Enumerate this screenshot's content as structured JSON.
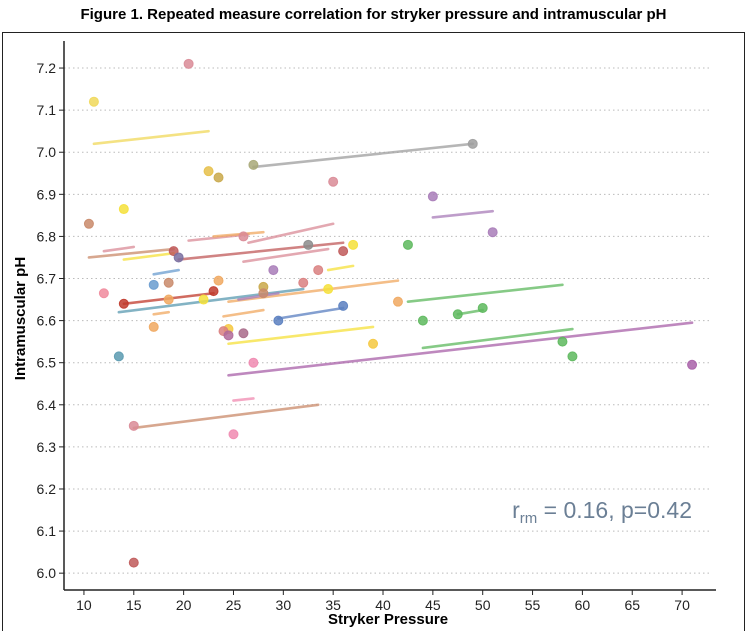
{
  "figure_title": "Figure 1. Repeated measure correlation for stryker pressure and intramuscular pH",
  "chart_data": {
    "type": "scatter",
    "title": "Figure 1. Repeated measure correlation for stryker pressure and intramuscular pH",
    "xlabel": "Stryker Pressure",
    "ylabel": "Intramuscular pH",
    "xlim": [
      8,
      73
    ],
    "ylim": [
      5.96,
      7.25
    ],
    "xticks": [
      10,
      15,
      20,
      25,
      30,
      35,
      40,
      45,
      50,
      55,
      60,
      65,
      70
    ],
    "yticks": [
      6.0,
      6.1,
      6.2,
      6.3,
      6.4,
      6.5,
      6.6,
      6.7,
      6.8,
      6.9,
      7.0,
      7.1,
      7.2
    ],
    "ytick_labels": [
      "6.0",
      "6.1",
      "6.2",
      "6.3",
      "6.4",
      "6.5",
      "6.6",
      "6.7",
      "6.8",
      "6.9",
      "7.0",
      "7.1",
      "7.2"
    ],
    "grid": "horizontal dotted",
    "annotation": {
      "r_prefix": "r",
      "r_sub": "rm",
      "text": " = 0.16, p=0.42"
    },
    "points": [
      {
        "x": 20.5,
        "y": 7.21,
        "color": "#d98b97"
      },
      {
        "x": 11,
        "y": 7.12,
        "color": "#f0d85a"
      },
      {
        "x": 49,
        "y": 7.02,
        "color": "#9e9e9e"
      },
      {
        "x": 27,
        "y": 6.97,
        "color": "#a8a878"
      },
      {
        "x": 22.5,
        "y": 6.955,
        "color": "#e6c04a"
      },
      {
        "x": 23.5,
        "y": 6.94,
        "color": "#c9a84a"
      },
      {
        "x": 35,
        "y": 6.93,
        "color": "#d98b97"
      },
      {
        "x": 45,
        "y": 6.895,
        "color": "#a87cb8"
      },
      {
        "x": 14,
        "y": 6.865,
        "color": "#f5e03a"
      },
      {
        "x": 10.5,
        "y": 6.83,
        "color": "#c98a6a"
      },
      {
        "x": 51,
        "y": 6.81,
        "color": "#a87cb8"
      },
      {
        "x": 26,
        "y": 6.8,
        "color": "#d98b97"
      },
      {
        "x": 42.5,
        "y": 6.78,
        "color": "#5db85d"
      },
      {
        "x": 37,
        "y": 6.78,
        "color": "#f5e03a"
      },
      {
        "x": 32.5,
        "y": 6.78,
        "color": "#8c8c8c"
      },
      {
        "x": 36,
        "y": 6.765,
        "color": "#c05a5a"
      },
      {
        "x": 19,
        "y": 6.765,
        "color": "#c05a5a"
      },
      {
        "x": 19.5,
        "y": 6.75,
        "color": "#7a6fa0"
      },
      {
        "x": 29,
        "y": 6.72,
        "color": "#a87cb8"
      },
      {
        "x": 33.5,
        "y": 6.72,
        "color": "#d98080"
      },
      {
        "x": 23.5,
        "y": 6.695,
        "color": "#f0a860"
      },
      {
        "x": 18.5,
        "y": 6.69,
        "color": "#c98a6a"
      },
      {
        "x": 32,
        "y": 6.69,
        "color": "#d98080"
      },
      {
        "x": 17,
        "y": 6.685,
        "color": "#6a9ccf"
      },
      {
        "x": 28,
        "y": 6.68,
        "color": "#c9a84a"
      },
      {
        "x": 34.5,
        "y": 6.675,
        "color": "#f5e03a"
      },
      {
        "x": 23,
        "y": 6.67,
        "color": "#c0392b"
      },
      {
        "x": 12,
        "y": 6.665,
        "color": "#f08a9c"
      },
      {
        "x": 28,
        "y": 6.665,
        "color": "#c98a6a"
      },
      {
        "x": 22,
        "y": 6.65,
        "color": "#f5e03a"
      },
      {
        "x": 18.5,
        "y": 6.65,
        "color": "#f0a860"
      },
      {
        "x": 41.5,
        "y": 6.645,
        "color": "#f0a860"
      },
      {
        "x": 14,
        "y": 6.64,
        "color": "#c0392b"
      },
      {
        "x": 36,
        "y": 6.635,
        "color": "#5a7fc0"
      },
      {
        "x": 50,
        "y": 6.63,
        "color": "#5db85d"
      },
      {
        "x": 47.5,
        "y": 6.615,
        "color": "#5db85d"
      },
      {
        "x": 29.5,
        "y": 6.6,
        "color": "#5a7fc0"
      },
      {
        "x": 44,
        "y": 6.6,
        "color": "#5db85d"
      },
      {
        "x": 17,
        "y": 6.585,
        "color": "#f0a860"
      },
      {
        "x": 24.5,
        "y": 6.58,
        "color": "#f5c840"
      },
      {
        "x": 24,
        "y": 6.575,
        "color": "#d98080"
      },
      {
        "x": 26,
        "y": 6.57,
        "color": "#a86a8a"
      },
      {
        "x": 24.5,
        "y": 6.565,
        "color": "#b06a9a"
      },
      {
        "x": 39,
        "y": 6.545,
        "color": "#f5c840"
      },
      {
        "x": 58,
        "y": 6.55,
        "color": "#5db85d"
      },
      {
        "x": 13.5,
        "y": 6.515,
        "color": "#5a9ab0"
      },
      {
        "x": 59,
        "y": 6.515,
        "color": "#5db85d"
      },
      {
        "x": 27,
        "y": 6.5,
        "color": "#f08ab0"
      },
      {
        "x": 71,
        "y": 6.495,
        "color": "#a860a8"
      },
      {
        "x": 15,
        "y": 6.35,
        "color": "#d98b97"
      },
      {
        "x": 25,
        "y": 6.33,
        "color": "#f08ab0"
      },
      {
        "x": 15,
        "y": 6.025,
        "color": "#c05a5a"
      }
    ],
    "lines": [
      {
        "x1": 11,
        "y1": 7.02,
        "x2": 22.5,
        "y2": 7.05,
        "color": "#f0d85a"
      },
      {
        "x1": 27,
        "y1": 6.965,
        "x2": 49,
        "y2": 7.02,
        "color": "#9e9e9e"
      },
      {
        "x1": 12,
        "y1": 6.765,
        "x2": 15,
        "y2": 6.775,
        "color": "#d98b97"
      },
      {
        "x1": 10.5,
        "y1": 6.75,
        "x2": 19,
        "y2": 6.77,
        "color": "#c98a6a"
      },
      {
        "x1": 14,
        "y1": 6.745,
        "x2": 19,
        "y2": 6.76,
        "color": "#f5e03a"
      },
      {
        "x1": 20.5,
        "y1": 6.79,
        "x2": 26.5,
        "y2": 6.805,
        "color": "#d98b97"
      },
      {
        "x1": 23,
        "y1": 6.8,
        "x2": 28,
        "y2": 6.81,
        "color": "#f0a860"
      },
      {
        "x1": 19.5,
        "y1": 6.745,
        "x2": 36,
        "y2": 6.785,
        "color": "#c05a5a"
      },
      {
        "x1": 26,
        "y1": 6.74,
        "x2": 34.5,
        "y2": 6.77,
        "color": "#d98b97"
      },
      {
        "x1": 26.5,
        "y1": 6.785,
        "x2": 35,
        "y2": 6.83,
        "color": "#d98b97"
      },
      {
        "x1": 17,
        "y1": 6.71,
        "x2": 19.5,
        "y2": 6.72,
        "color": "#6a9ccf"
      },
      {
        "x1": 34.5,
        "y1": 6.72,
        "x2": 37,
        "y2": 6.73,
        "color": "#f5e03a"
      },
      {
        "x1": 13.5,
        "y1": 6.62,
        "x2": 32,
        "y2": 6.675,
        "color": "#5a9ab0"
      },
      {
        "x1": 14,
        "y1": 6.64,
        "x2": 23,
        "y2": 6.665,
        "color": "#c0392b"
      },
      {
        "x1": 24.5,
        "y1": 6.645,
        "x2": 41.5,
        "y2": 6.695,
        "color": "#f0a860"
      },
      {
        "x1": 17,
        "y1": 6.615,
        "x2": 18.5,
        "y2": 6.62,
        "color": "#f0a860"
      },
      {
        "x1": 24,
        "y1": 6.61,
        "x2": 28,
        "y2": 6.625,
        "color": "#f0a860"
      },
      {
        "x1": 25.5,
        "y1": 6.65,
        "x2": 29.5,
        "y2": 6.665,
        "color": "#a87cb8"
      },
      {
        "x1": 29.5,
        "y1": 6.605,
        "x2": 36,
        "y2": 6.63,
        "color": "#5a7fc0"
      },
      {
        "x1": 24.5,
        "y1": 6.545,
        "x2": 39,
        "y2": 6.585,
        "color": "#f5e03a"
      },
      {
        "x1": 42.5,
        "y1": 6.645,
        "x2": 58,
        "y2": 6.685,
        "color": "#5db85d"
      },
      {
        "x1": 45,
        "y1": 6.845,
        "x2": 51,
        "y2": 6.86,
        "color": "#a87cb8"
      },
      {
        "x1": 47.5,
        "y1": 6.615,
        "x2": 50,
        "y2": 6.625,
        "color": "#5db85d"
      },
      {
        "x1": 44,
        "y1": 6.535,
        "x2": 59,
        "y2": 6.58,
        "color": "#5db85d"
      },
      {
        "x1": 24.5,
        "y1": 6.47,
        "x2": 71,
        "y2": 6.595,
        "color": "#a860a8"
      },
      {
        "x1": 25,
        "y1": 6.41,
        "x2": 27,
        "y2": 6.415,
        "color": "#f08ab0"
      },
      {
        "x1": 15,
        "y1": 6.345,
        "x2": 33.5,
        "y2": 6.4,
        "color": "#c98a6a"
      }
    ]
  }
}
